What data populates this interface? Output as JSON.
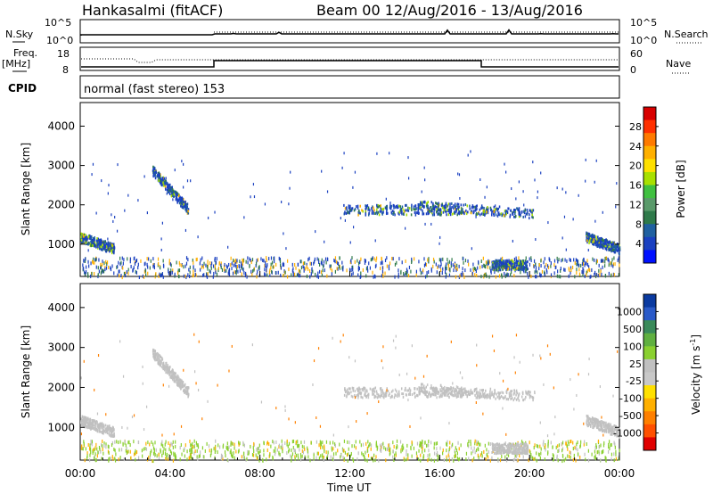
{
  "header": {
    "station": "Hankasalmi (fitACF)",
    "beam_info": "Beam 00 12/Aug/2016 - 13/Aug/2016"
  },
  "panel_sky": {
    "left_label": "N.Sky",
    "right_label": "N.Search",
    "left_ticks": [
      "10^5",
      "10^0"
    ],
    "right_ticks": [
      "10^5",
      "10^0"
    ]
  },
  "panel_freq": {
    "left_label_1": "Freq.",
    "left_label_2": "[MHz]",
    "left_ticks": [
      "18",
      "8"
    ],
    "right_label": "Nave",
    "right_ticks": [
      "60",
      "0"
    ]
  },
  "panel_cpid": {
    "label": "CPID",
    "value": "normal (fast stereo) 153"
  },
  "panel_power": {
    "ylabel": "Slant Range [km]",
    "yticks": [
      "4000",
      "3000",
      "2000",
      "1000"
    ],
    "colorbar_label": "Power [dB]",
    "colorbar_ticks": [
      "28",
      "24",
      "20",
      "16",
      "12",
      "8",
      "4"
    ],
    "colorbar_colors": [
      "#d80000",
      "#ff3000",
      "#ff7a00",
      "#ffb000",
      "#ffe000",
      "#a8e000",
      "#40c040",
      "#5a9a6a",
      "#2f7a4a",
      "#2060a0",
      "#1a40c0",
      "#0010ff"
    ]
  },
  "panel_velocity": {
    "ylabel": "Slant Range [km]",
    "yticks": [
      "4000",
      "3000",
      "2000",
      "1000"
    ],
    "colorbar_label": "Velocity [m s",
    "colorbar_label_exp": "-1",
    "colorbar_label_end": "]",
    "colorbar_ticks": [
      "1000",
      "500",
      "100",
      "25",
      "-25",
      "-100",
      "-500",
      "-1000"
    ],
    "colorbar_colors": [
      "#0a3aa0",
      "#2a5ac8",
      "#3a8a5a",
      "#60b040",
      "#8ad030",
      "#c0c0c0",
      "#c8c8c8",
      "#ffe000",
      "#ffb000",
      "#ff8000",
      "#ff5000",
      "#e00000"
    ]
  },
  "xaxis": {
    "ticks": [
      "00:00",
      "04:00",
      "08:00",
      "12:00",
      "16:00",
      "20:00",
      "00:00"
    ],
    "label": "Time UT"
  },
  "chart_data": {
    "type": "heatmap",
    "x_range_hours": [
      0,
      24
    ],
    "y_range_km": [
      180,
      4600
    ],
    "power_scale_db": [
      0,
      30
    ],
    "velocity_scale": [
      -1000,
      1000
    ],
    "echo_regions": [
      {
        "t_start": 3.2,
        "t_end": 4.8,
        "range_start": 2900,
        "range_end": 1900
      },
      {
        "t_start": 0.0,
        "t_end": 1.5,
        "range_start": 1200,
        "range_end": 900
      },
      {
        "t_start": 11.7,
        "t_end": 17.0,
        "range_start": 1900,
        "range_end": 1900
      },
      {
        "t_start": 15.0,
        "t_end": 20.2,
        "range_start": 2000,
        "range_end": 1800
      },
      {
        "t_start": 22.5,
        "t_end": 24.0,
        "range_start": 1200,
        "range_end": 900
      },
      {
        "t_start": 18.3,
        "t_end": 19.9,
        "range_start": 500,
        "range_end": 500
      }
    ]
  }
}
